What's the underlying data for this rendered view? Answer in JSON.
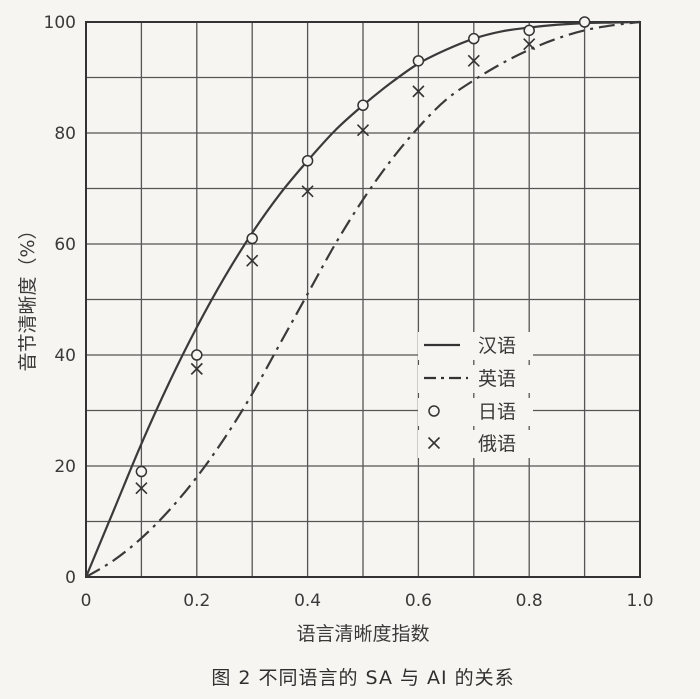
{
  "chart_data": {
    "type": "line",
    "caption": "图 2   不同语言的 SA 与 AI 的关系",
    "xlabel": "语言清晰度指数",
    "ylabel": "音节清晰度（%）",
    "xlim": [
      0,
      1.0
    ],
    "ylim": [
      0,
      100
    ],
    "x_ticks": [
      "0",
      "0.2",
      "0.4",
      "0.6",
      "0.8",
      "1.0"
    ],
    "y_ticks": [
      "0",
      "20",
      "40",
      "60",
      "80",
      "100"
    ],
    "grid": true,
    "legend_position": "right",
    "series": [
      {
        "name": "汉语",
        "style": "solid",
        "x": [
          0,
          0.05,
          0.1,
          0.15,
          0.2,
          0.25,
          0.3,
          0.35,
          0.4,
          0.45,
          0.5,
          0.55,
          0.6,
          0.65,
          0.7,
          0.75,
          0.8,
          0.85,
          0.9,
          0.95,
          1.0
        ],
        "y": [
          0,
          12,
          24,
          35,
          45,
          54,
          62,
          69,
          75,
          80.5,
          85,
          89,
          92.5,
          95,
          97,
          98.3,
          99,
          99.5,
          99.8,
          99.9,
          100
        ]
      },
      {
        "name": "英语",
        "style": "dash-dot",
        "x": [
          0,
          0.05,
          0.1,
          0.15,
          0.2,
          0.25,
          0.3,
          0.35,
          0.4,
          0.45,
          0.5,
          0.55,
          0.6,
          0.65,
          0.7,
          0.75,
          0.8,
          0.85,
          0.9,
          0.95,
          1.0
        ],
        "y": [
          0,
          3,
          7,
          12,
          18,
          25,
          33,
          42,
          51,
          60,
          68,
          75,
          81,
          86,
          89.5,
          92.5,
          95,
          97,
          98.5,
          99.4,
          100
        ]
      },
      {
        "name": "日语",
        "marker": "circle",
        "x": [
          0.1,
          0.2,
          0.3,
          0.4,
          0.5,
          0.6,
          0.7,
          0.8,
          0.9
        ],
        "y": [
          19,
          40,
          61,
          75,
          85,
          93,
          97,
          98.5,
          100
        ]
      },
      {
        "name": "俄语",
        "marker": "cross",
        "x": [
          0.1,
          0.2,
          0.3,
          0.4,
          0.5,
          0.6,
          0.7,
          0.8
        ],
        "y": [
          16,
          37.5,
          57,
          69.5,
          80.5,
          87.5,
          93,
          96
        ]
      }
    ]
  }
}
